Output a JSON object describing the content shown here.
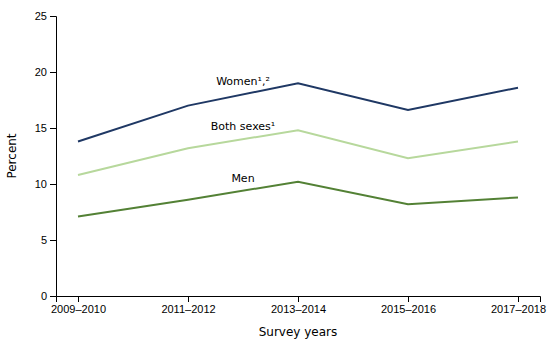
{
  "chart_data": {
    "type": "line",
    "categories": [
      "2009–2010",
      "2011–2012",
      "2013–2014",
      "2015–2016",
      "2017–2018"
    ],
    "series": [
      {
        "name": "Women¹,²",
        "color": "#1f3864",
        "values": [
          13.8,
          17.0,
          19.0,
          16.6,
          18.6
        ]
      },
      {
        "name": "Both sexes¹",
        "color": "#b7d89c",
        "values": [
          10.8,
          13.2,
          14.8,
          12.3,
          13.8
        ]
      },
      {
        "name": "Men",
        "color": "#538135",
        "values": [
          7.1,
          8.6,
          10.2,
          8.2,
          8.8
        ]
      }
    ],
    "xlabel": "Survey years",
    "ylabel": "Percent",
    "ylim": [
      0,
      25
    ],
    "yticks": [
      0,
      5,
      10,
      15,
      20,
      25
    ],
    "grid": false
  }
}
